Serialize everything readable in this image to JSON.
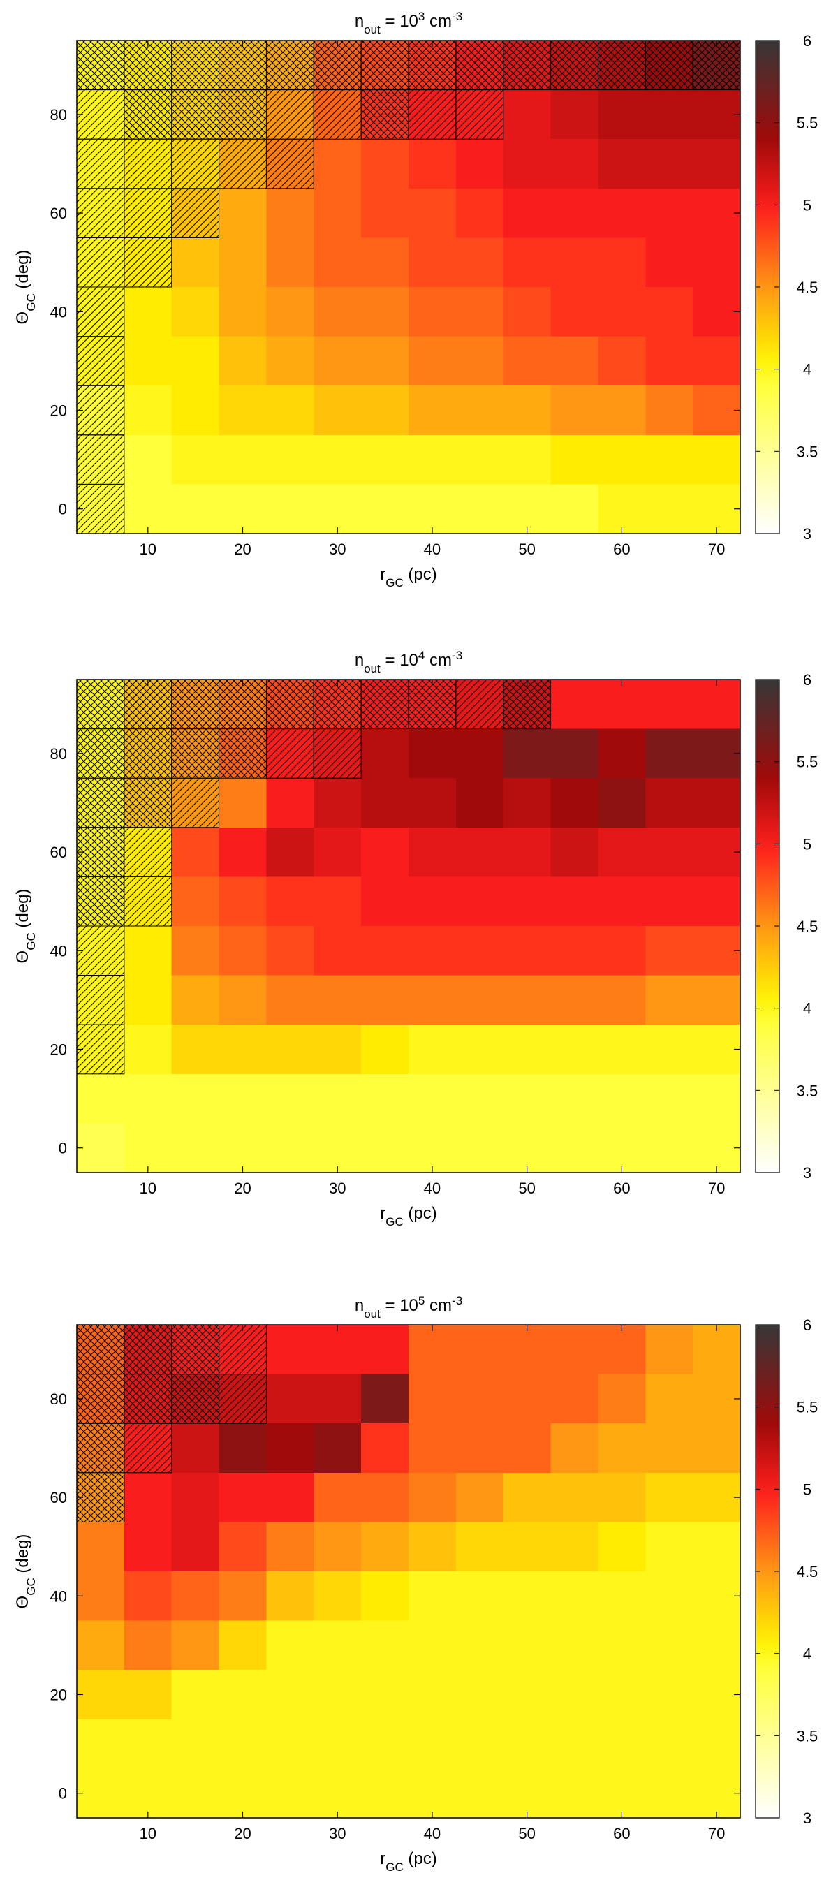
{
  "figure": {
    "panels_count": 3
  },
  "chart_data": [
    {
      "type": "heatmap",
      "title": {
        "prefix": "n",
        "prefix_sub": "out",
        "mid": " =  10",
        "exp": "3",
        "suffix": " cm",
        "suffix_exp": "-3"
      },
      "xlabel": {
        "main": "r",
        "sub": "GC",
        "rest": " (pc)"
      },
      "ylabel": {
        "main": "Θ",
        "sub": "GC",
        "rest": " (deg)"
      },
      "x_ticks": [
        "10",
        "20",
        "30",
        "40",
        "50",
        "60",
        "70"
      ],
      "y_ticks": [
        "0",
        "20",
        "40",
        "60",
        "80"
      ],
      "colorbar_ticks": [
        "3",
        "3.5",
        "4",
        "4.5",
        "5",
        "5.5",
        "6"
      ],
      "x_centers": [
        5,
        10,
        15,
        20,
        25,
        30,
        35,
        40,
        45,
        50,
        55,
        60,
        65,
        70
      ],
      "y_centers": [
        90,
        80,
        70,
        60,
        50,
        40,
        30,
        20,
        10,
        0
      ],
      "xlim": [
        2.5,
        72.5
      ],
      "ylim": [
        -5,
        95
      ],
      "zlim": [
        3,
        6
      ],
      "values": [
        [
          4.0,
          4.1,
          4.2,
          4.3,
          4.4,
          4.7,
          4.8,
          4.9,
          5.0,
          5.1,
          5.2,
          5.3,
          5.4,
          5.6
        ],
        [
          4.0,
          4.1,
          4.2,
          4.3,
          4.5,
          4.7,
          4.9,
          5.0,
          5.0,
          5.1,
          5.2,
          5.3,
          5.3,
          5.3
        ],
        [
          4.0,
          4.1,
          4.2,
          4.4,
          4.6,
          4.7,
          4.8,
          4.9,
          5.0,
          5.1,
          5.1,
          5.2,
          5.2,
          5.2
        ],
        [
          4.0,
          4.1,
          4.3,
          4.4,
          4.6,
          4.7,
          4.8,
          4.8,
          4.9,
          5.0,
          5.0,
          5.0,
          5.0,
          5.0
        ],
        [
          4.0,
          4.1,
          4.3,
          4.4,
          4.6,
          4.7,
          4.7,
          4.8,
          4.8,
          4.9,
          4.9,
          4.9,
          5.0,
          5.0
        ],
        [
          4.0,
          4.1,
          4.2,
          4.4,
          4.5,
          4.6,
          4.6,
          4.7,
          4.7,
          4.8,
          4.9,
          4.9,
          4.9,
          5.0
        ],
        [
          4.0,
          4.1,
          4.1,
          4.3,
          4.4,
          4.5,
          4.5,
          4.6,
          4.6,
          4.7,
          4.7,
          4.8,
          4.9,
          4.9
        ],
        [
          3.9,
          4.0,
          4.1,
          4.2,
          4.2,
          4.3,
          4.3,
          4.4,
          4.4,
          4.4,
          4.5,
          4.5,
          4.6,
          4.7
        ],
        [
          3.9,
          3.9,
          4.0,
          4.0,
          4.0,
          4.0,
          4.0,
          4.0,
          4.0,
          4.0,
          4.1,
          4.1,
          4.1,
          4.1
        ],
        [
          3.9,
          3.9,
          3.9,
          3.9,
          3.9,
          3.9,
          3.9,
          3.9,
          3.9,
          3.9,
          3.9,
          4.0,
          4.0,
          4.0
        ]
      ],
      "hatch": [
        [
          "x",
          "x",
          "x",
          "x",
          "x",
          "x",
          "x",
          "x",
          "x",
          "x",
          "x",
          "x",
          "x",
          "x"
        ],
        [
          "/",
          "x",
          "x",
          "x",
          "/",
          "/",
          "x",
          "/",
          "/",
          "",
          "",
          "",
          "",
          ""
        ],
        [
          "/",
          "/",
          "/",
          "/",
          "/",
          "",
          "",
          "",
          "",
          "",
          "",
          "",
          "",
          ""
        ],
        [
          "/",
          "/",
          "/",
          "",
          "",
          "",
          "",
          "",
          "",
          "",
          "",
          "",
          "",
          ""
        ],
        [
          "/",
          "/",
          "",
          "",
          "",
          "",
          "",
          "",
          "",
          "",
          "",
          "",
          "",
          ""
        ],
        [
          "/",
          "",
          "",
          "",
          "",
          "",
          "",
          "",
          "",
          "",
          "",
          "",
          "",
          ""
        ],
        [
          "/",
          "",
          "",
          "",
          "",
          "",
          "",
          "",
          "",
          "",
          "",
          "",
          "",
          ""
        ],
        [
          "/",
          "",
          "",
          "",
          "",
          "",
          "",
          "",
          "",
          "",
          "",
          "",
          "",
          ""
        ],
        [
          "/",
          "",
          "",
          "",
          "",
          "",
          "",
          "",
          "",
          "",
          "",
          "",
          "",
          ""
        ],
        [
          "/",
          "",
          "",
          "",
          "",
          "",
          "",
          "",
          "",
          "",
          "",
          "",
          "",
          ""
        ]
      ]
    },
    {
      "type": "heatmap",
      "title": {
        "prefix": "n",
        "prefix_sub": "out",
        "mid": " =  10",
        "exp": "4",
        "suffix": " cm",
        "suffix_exp": "-3"
      },
      "xlabel": {
        "main": "r",
        "sub": "GC",
        "rest": " (pc)"
      },
      "ylabel": {
        "main": "Θ",
        "sub": "GC",
        "rest": " (deg)"
      },
      "x_ticks": [
        "10",
        "20",
        "30",
        "40",
        "50",
        "60",
        "70"
      ],
      "y_ticks": [
        "0",
        "20",
        "40",
        "60",
        "80"
      ],
      "colorbar_ticks": [
        "3",
        "3.5",
        "4",
        "4.5",
        "5",
        "5.5",
        "6"
      ],
      "x_centers": [
        5,
        10,
        15,
        20,
        25,
        30,
        35,
        40,
        45,
        50,
        55,
        60,
        65,
        70
      ],
      "y_centers": [
        90,
        80,
        70,
        60,
        50,
        40,
        30,
        20,
        10,
        0
      ],
      "xlim": [
        2.5,
        72.5
      ],
      "ylim": [
        -5,
        95
      ],
      "zlim": [
        3,
        6
      ],
      "values": [
        [
          4.0,
          4.3,
          4.5,
          4.6,
          4.8,
          4.9,
          5.0,
          5.0,
          5.1,
          5.2,
          5.0,
          5.0,
          5.0,
          5.0
        ],
        [
          4.0,
          4.3,
          4.5,
          4.7,
          5.0,
          5.1,
          5.3,
          5.4,
          5.4,
          5.6,
          5.6,
          5.4,
          5.6,
          5.6
        ],
        [
          4.0,
          4.3,
          4.5,
          4.6,
          5.0,
          5.2,
          5.3,
          5.3,
          5.4,
          5.3,
          5.4,
          5.5,
          5.3,
          5.3
        ],
        [
          4.0,
          4.1,
          4.8,
          5.0,
          5.2,
          5.1,
          5.0,
          5.1,
          5.1,
          5.1,
          5.2,
          5.1,
          5.1,
          5.1
        ],
        [
          4.0,
          4.1,
          4.7,
          4.8,
          4.9,
          4.9,
          5.0,
          5.0,
          5.0,
          5.0,
          5.0,
          5.0,
          5.0,
          5.0
        ],
        [
          4.0,
          4.1,
          4.6,
          4.7,
          4.8,
          4.9,
          4.9,
          4.9,
          4.9,
          4.9,
          4.9,
          4.9,
          4.8,
          4.8
        ],
        [
          4.0,
          4.1,
          4.4,
          4.5,
          4.6,
          4.6,
          4.6,
          4.6,
          4.6,
          4.6,
          4.6,
          4.6,
          4.5,
          4.5
        ],
        [
          4.0,
          4.0,
          4.2,
          4.2,
          4.2,
          4.2,
          4.1,
          4.0,
          4.0,
          4.0,
          4.0,
          4.0,
          4.0,
          4.0
        ],
        [
          3.9,
          3.9,
          3.9,
          3.9,
          3.9,
          3.9,
          3.9,
          3.9,
          3.9,
          3.9,
          3.9,
          3.9,
          3.9,
          3.9
        ],
        [
          3.8,
          3.9,
          3.9,
          3.9,
          3.9,
          3.9,
          3.9,
          3.9,
          3.9,
          3.9,
          3.9,
          3.9,
          3.9,
          3.9
        ]
      ],
      "hatch": [
        [
          "x",
          "x",
          "x",
          "x",
          "x",
          "x",
          "x",
          "x",
          "/",
          "x",
          "",
          "",
          "",
          ""
        ],
        [
          "x",
          "x",
          "x",
          "x",
          "/",
          "/",
          "",
          "",
          "",
          "",
          "",
          "",
          "",
          ""
        ],
        [
          "x",
          "x",
          "/",
          "",
          "",
          "",
          "",
          "",
          "",
          "",
          "",
          "",
          "",
          ""
        ],
        [
          "x",
          "/",
          "",
          "",
          "",
          "",
          "",
          "",
          "",
          "",
          "",
          "",
          "",
          ""
        ],
        [
          "x",
          "/",
          "",
          "",
          "",
          "",
          "",
          "",
          "",
          "",
          "",
          "",
          "",
          ""
        ],
        [
          "/",
          "",
          "",
          "",
          "",
          "",
          "",
          "",
          "",
          "",
          "",
          "",
          "",
          ""
        ],
        [
          "/",
          "",
          "",
          "",
          "",
          "",
          "",
          "",
          "",
          "",
          "",
          "",
          "",
          ""
        ],
        [
          "/",
          "",
          "",
          "",
          "",
          "",
          "",
          "",
          "",
          "",
          "",
          "",
          "",
          ""
        ],
        [
          "",
          "",
          "",
          "",
          "",
          "",
          "",
          "",
          "",
          "",
          "",
          "",
          "",
          ""
        ],
        [
          "",
          "",
          "",
          "",
          "",
          "",
          "",
          "",
          "",
          "",
          "",
          "",
          "",
          ""
        ]
      ]
    },
    {
      "type": "heatmap",
      "title": {
        "prefix": "n",
        "prefix_sub": "out",
        "mid": " =  10",
        "exp": "5",
        "suffix": " cm",
        "suffix_exp": "-3"
      },
      "xlabel": {
        "main": "r",
        "sub": "GC",
        "rest": " (pc)"
      },
      "ylabel": {
        "main": "Θ",
        "sub": "GC",
        "rest": " (deg)"
      },
      "x_ticks": [
        "10",
        "20",
        "30",
        "40",
        "50",
        "60",
        "70"
      ],
      "y_ticks": [
        "0",
        "20",
        "40",
        "60",
        "80"
      ],
      "colorbar_ticks": [
        "3",
        "3.5",
        "4",
        "4.5",
        "5",
        "5.5",
        "6"
      ],
      "x_centers": [
        5,
        10,
        15,
        20,
        25,
        30,
        35,
        40,
        45,
        50,
        55,
        60,
        65,
        70
      ],
      "y_centers": [
        90,
        80,
        70,
        60,
        50,
        40,
        30,
        20,
        10,
        0
      ],
      "xlim": [
        2.5,
        72.5
      ],
      "ylim": [
        -5,
        95
      ],
      "zlim": [
        3,
        6
      ],
      "values": [
        [
          4.7,
          5.1,
          5.0,
          5.0,
          5.0,
          5.0,
          5.0,
          4.7,
          4.7,
          4.7,
          4.7,
          4.7,
          4.5,
          4.4
        ],
        [
          4.7,
          5.1,
          5.2,
          5.2,
          5.2,
          5.2,
          5.6,
          4.7,
          4.7,
          4.7,
          4.7,
          4.6,
          4.4,
          4.4
        ],
        [
          4.6,
          5.0,
          5.2,
          5.5,
          5.4,
          5.5,
          4.9,
          4.7,
          4.7,
          4.7,
          4.5,
          4.4,
          4.4,
          4.4
        ],
        [
          4.5,
          5.0,
          5.1,
          5.0,
          5.0,
          4.7,
          4.7,
          4.6,
          4.5,
          4.3,
          4.3,
          4.3,
          4.2,
          4.2
        ],
        [
          4.6,
          5.0,
          5.1,
          4.8,
          4.6,
          4.5,
          4.4,
          4.3,
          4.2,
          4.2,
          4.2,
          4.1,
          4.0,
          4.0
        ],
        [
          4.6,
          4.8,
          4.7,
          4.6,
          4.3,
          4.2,
          4.1,
          4.0,
          4.0,
          4.0,
          4.0,
          4.0,
          4.0,
          4.0
        ],
        [
          4.4,
          4.6,
          4.5,
          4.2,
          4.0,
          4.0,
          4.0,
          4.0,
          4.0,
          4.0,
          4.0,
          4.0,
          4.0,
          4.0
        ],
        [
          4.2,
          4.2,
          4.0,
          4.0,
          4.0,
          4.0,
          4.0,
          4.0,
          4.0,
          4.0,
          4.0,
          4.0,
          4.0,
          4.0
        ],
        [
          4.0,
          4.0,
          4.0,
          4.0,
          4.0,
          4.0,
          4.0,
          4.0,
          4.0,
          4.0,
          4.0,
          4.0,
          4.0,
          4.0
        ],
        [
          4.0,
          4.0,
          4.0,
          4.0,
          4.0,
          4.0,
          4.0,
          4.0,
          4.0,
          4.0,
          4.0,
          4.0,
          4.0,
          4.0
        ]
      ],
      "hatch": [
        [
          "x",
          "x",
          "x",
          "/",
          "",
          "",
          "",
          "",
          "",
          "",
          "",
          "",
          "",
          ""
        ],
        [
          "x",
          "x",
          "x",
          "/",
          "",
          "",
          "",
          "",
          "",
          "",
          "",
          "",
          "",
          ""
        ],
        [
          "x",
          "/",
          "",
          "",
          "",
          "",
          "",
          "",
          "",
          "",
          "",
          "",
          "",
          ""
        ],
        [
          "x",
          "",
          "",
          "",
          "",
          "",
          "",
          "",
          "",
          "",
          "",
          "",
          "",
          ""
        ],
        [
          "",
          "",
          "",
          "",
          "",
          "",
          "",
          "",
          "",
          "",
          "",
          "",
          "",
          ""
        ],
        [
          "",
          "",
          "",
          "",
          "",
          "",
          "",
          "",
          "",
          "",
          "",
          "",
          "",
          ""
        ],
        [
          "",
          "",
          "",
          "",
          "",
          "",
          "",
          "",
          "",
          "",
          "",
          "",
          "",
          ""
        ],
        [
          "",
          "",
          "",
          "",
          "",
          "",
          "",
          "",
          "",
          "",
          "",
          "",
          "",
          ""
        ],
        [
          "",
          "",
          "",
          "",
          "",
          "",
          "",
          "",
          "",
          "",
          "",
          "",
          "",
          ""
        ],
        [
          "",
          "",
          "",
          "",
          "",
          "",
          "",
          "",
          "",
          "",
          "",
          "",
          "",
          ""
        ]
      ]
    }
  ]
}
